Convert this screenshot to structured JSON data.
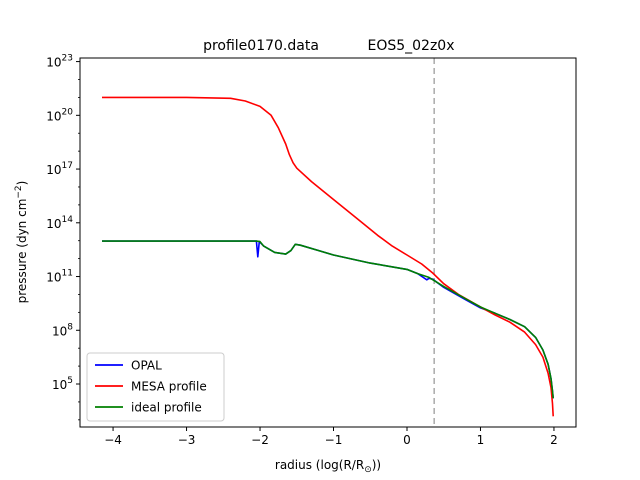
{
  "chart_data": {
    "type": "line",
    "title_left": "profile0170.data",
    "title_right": "EOS5_02z0x",
    "xlabel": "radius (log(R/R",
    "xlabel_sub": "⊙",
    "xlabel_end": "))",
    "ylabel": "pressure (dyn cm",
    "ylabel_sup": "−2",
    "ylabel_end": ")",
    "xlim": [
      -4.45,
      2.3
    ],
    "ylim_log10": [
      2.6,
      23.2
    ],
    "y_scale": "log",
    "xticks": [
      {
        "value": -4,
        "label": "−4"
      },
      {
        "value": -3,
        "label": "−3"
      },
      {
        "value": -2,
        "label": "−2"
      },
      {
        "value": -1,
        "label": "−1"
      },
      {
        "value": 0,
        "label": "0"
      },
      {
        "value": 1,
        "label": "1"
      },
      {
        "value": 2,
        "label": "2"
      }
    ],
    "yticks": [
      {
        "exp": 5,
        "base": "10",
        "sup": "5"
      },
      {
        "exp": 8,
        "base": "10",
        "sup": "8"
      },
      {
        "exp": 11,
        "base": "10",
        "sup": "11"
      },
      {
        "exp": 14,
        "base": "10",
        "sup": "14"
      },
      {
        "exp": 17,
        "base": "10",
        "sup": "17"
      },
      {
        "exp": 20,
        "base": "10",
        "sup": "20"
      },
      {
        "exp": 23,
        "base": "10",
        "sup": "23"
      }
    ],
    "vline": {
      "x": 0.37,
      "color": "#aaaaaa",
      "style": "dashed"
    },
    "legend_position": "lower-left",
    "series": [
      {
        "name": "OPAL",
        "color": "#0000ff",
        "points": [
          [
            -4.15,
            12.98
          ],
          [
            -3.0,
            12.98
          ],
          [
            -2.4,
            12.98
          ],
          [
            -2.05,
            12.98
          ],
          [
            -2.03,
            12.1
          ],
          [
            -2.01,
            12.95
          ],
          [
            -1.95,
            12.7
          ],
          [
            -1.8,
            12.35
          ],
          [
            -1.65,
            12.25
          ],
          [
            -1.58,
            12.45
          ],
          [
            -1.52,
            12.8
          ],
          [
            -1.45,
            12.75
          ],
          [
            -1.2,
            12.45
          ],
          [
            -1.0,
            12.2
          ],
          [
            -0.5,
            11.75
          ],
          [
            0.0,
            11.4
          ],
          [
            0.15,
            11.15
          ],
          [
            0.22,
            10.95
          ],
          [
            0.27,
            10.82
          ],
          [
            0.3,
            10.9
          ],
          [
            0.35,
            10.85
          ],
          [
            0.5,
            10.4
          ],
          [
            0.8,
            9.7
          ],
          [
            1.0,
            9.25
          ],
          [
            1.2,
            8.95
          ],
          [
            1.4,
            8.6
          ],
          [
            1.6,
            8.2
          ],
          [
            1.75,
            7.6
          ],
          [
            1.85,
            6.9
          ],
          [
            1.92,
            6.1
          ],
          [
            1.96,
            5.3
          ],
          [
            1.98,
            4.6
          ],
          [
            1.99,
            4.2
          ]
        ]
      },
      {
        "name": "MESA profile",
        "color": "#ff0000",
        "points": [
          [
            -4.15,
            21.0
          ],
          [
            -3.0,
            21.0
          ],
          [
            -2.4,
            20.95
          ],
          [
            -2.2,
            20.8
          ],
          [
            -2.0,
            20.5
          ],
          [
            -1.85,
            20.0
          ],
          [
            -1.75,
            19.3
          ],
          [
            -1.65,
            18.4
          ],
          [
            -1.6,
            17.8
          ],
          [
            -1.55,
            17.35
          ],
          [
            -1.5,
            17.05
          ],
          [
            -1.3,
            16.3
          ],
          [
            -1.0,
            15.3
          ],
          [
            -0.7,
            14.3
          ],
          [
            -0.4,
            13.3
          ],
          [
            -0.2,
            12.7
          ],
          [
            0.0,
            12.2
          ],
          [
            0.2,
            11.7
          ],
          [
            0.35,
            11.2
          ],
          [
            0.5,
            10.6
          ],
          [
            0.7,
            10.0
          ],
          [
            1.0,
            9.3
          ],
          [
            1.2,
            8.85
          ],
          [
            1.4,
            8.45
          ],
          [
            1.6,
            7.9
          ],
          [
            1.75,
            7.2
          ],
          [
            1.85,
            6.5
          ],
          [
            1.92,
            5.6
          ],
          [
            1.96,
            4.8
          ],
          [
            1.98,
            3.9
          ],
          [
            1.99,
            3.2
          ]
        ]
      },
      {
        "name": "ideal profile",
        "color": "#008000",
        "points": [
          [
            -4.15,
            12.98
          ],
          [
            -3.0,
            12.98
          ],
          [
            -2.4,
            12.98
          ],
          [
            -2.05,
            12.98
          ],
          [
            -2.0,
            12.95
          ],
          [
            -1.95,
            12.7
          ],
          [
            -1.8,
            12.35
          ],
          [
            -1.65,
            12.25
          ],
          [
            -1.58,
            12.45
          ],
          [
            -1.52,
            12.8
          ],
          [
            -1.45,
            12.75
          ],
          [
            -1.2,
            12.45
          ],
          [
            -1.0,
            12.2
          ],
          [
            -0.5,
            11.75
          ],
          [
            0.0,
            11.4
          ],
          [
            0.15,
            11.15
          ],
          [
            0.3,
            10.95
          ],
          [
            0.5,
            10.45
          ],
          [
            0.8,
            9.75
          ],
          [
            1.0,
            9.3
          ],
          [
            1.2,
            8.95
          ],
          [
            1.4,
            8.6
          ],
          [
            1.6,
            8.2
          ],
          [
            1.75,
            7.6
          ],
          [
            1.85,
            6.9
          ],
          [
            1.92,
            6.1
          ],
          [
            1.96,
            5.3
          ],
          [
            1.98,
            4.6
          ],
          [
            1.99,
            4.2
          ]
        ]
      }
    ]
  }
}
